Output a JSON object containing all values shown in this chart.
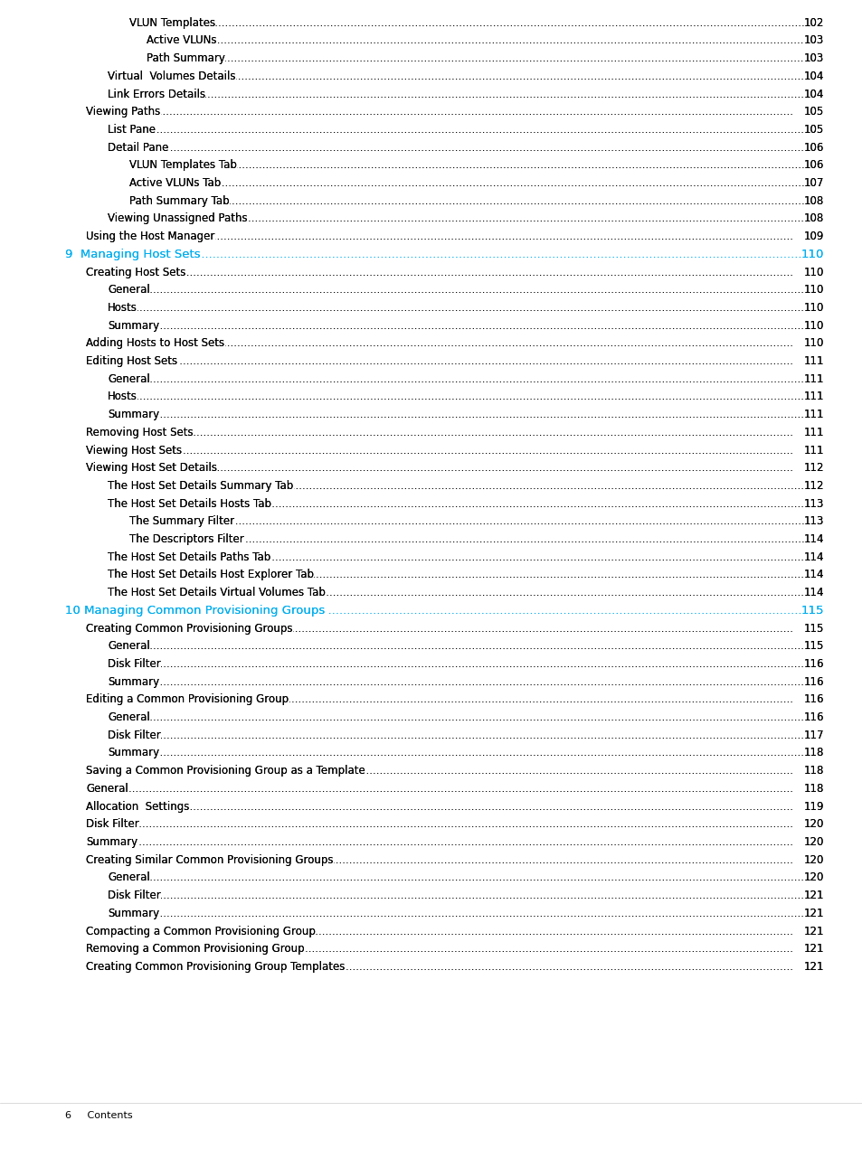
{
  "bg_color": "#ffffff",
  "text_color": "#000000",
  "cyan_color": "#00AEEF",
  "footer_text": "6     Contents",
  "entries": [
    {
      "indent": 3,
      "text": "VLUN Templates",
      "page": "102",
      "cyan": false
    },
    {
      "indent": 4,
      "text": "Active VLUNs",
      "page": "103",
      "cyan": false
    },
    {
      "indent": 4,
      "text": "Path Summary",
      "page": "103",
      "cyan": false
    },
    {
      "indent": 2,
      "text": "Virtual  Volumes Details",
      "page": "104",
      "cyan": false
    },
    {
      "indent": 2,
      "text": "Link Errors Details",
      "page": "104",
      "cyan": false
    },
    {
      "indent": 1,
      "text": "Viewing Paths",
      "page": "105",
      "cyan": false
    },
    {
      "indent": 2,
      "text": "List Pane",
      "page": "105",
      "cyan": false
    },
    {
      "indent": 2,
      "text": "Detail Pane",
      "page": "106",
      "cyan": false
    },
    {
      "indent": 3,
      "text": "VLUN Templates Tab",
      "page": "106",
      "cyan": false
    },
    {
      "indent": 3,
      "text": "Active VLUNs Tab",
      "page": "107",
      "cyan": false
    },
    {
      "indent": 3,
      "text": "Path Summary Tab",
      "page": "108",
      "cyan": false
    },
    {
      "indent": 2,
      "text": "Viewing Unassigned Paths",
      "page": "108",
      "cyan": false
    },
    {
      "indent": 1,
      "text": "Using the Host Manager",
      "page": "109",
      "cyan": false
    },
    {
      "indent": 0,
      "text": "9  Managing Host Sets",
      "page": "110",
      "cyan": true
    },
    {
      "indent": 1,
      "text": "Creating Host Sets",
      "page": "110",
      "cyan": false
    },
    {
      "indent": 2,
      "text": "General",
      "page": "110",
      "cyan": false
    },
    {
      "indent": 2,
      "text": "Hosts",
      "page": "110",
      "cyan": false
    },
    {
      "indent": 2,
      "text": "Summary",
      "page": "110",
      "cyan": false
    },
    {
      "indent": 1,
      "text": "Adding Hosts to Host Sets",
      "page": "110",
      "cyan": false
    },
    {
      "indent": 1,
      "text": "Editing Host Sets",
      "page": "111",
      "cyan": false
    },
    {
      "indent": 2,
      "text": "General",
      "page": "111",
      "cyan": false
    },
    {
      "indent": 2,
      "text": "Hosts",
      "page": "111",
      "cyan": false
    },
    {
      "indent": 2,
      "text": "Summary",
      "page": "111",
      "cyan": false
    },
    {
      "indent": 1,
      "text": "Removing Host Sets",
      "page": "111",
      "cyan": false
    },
    {
      "indent": 1,
      "text": "Viewing Host Sets",
      "page": "111",
      "cyan": false
    },
    {
      "indent": 1,
      "text": "Viewing Host Set Details",
      "page": "112",
      "cyan": false
    },
    {
      "indent": 2,
      "text": "The Host Set Details Summary Tab",
      "page": "112",
      "cyan": false
    },
    {
      "indent": 2,
      "text": "The Host Set Details Hosts Tab",
      "page": "113",
      "cyan": false
    },
    {
      "indent": 3,
      "text": "The Summary Filter",
      "page": "113",
      "cyan": false
    },
    {
      "indent": 3,
      "text": "The Descriptors Filter",
      "page": "114",
      "cyan": false
    },
    {
      "indent": 2,
      "text": "The Host Set Details Paths Tab",
      "page": "114",
      "cyan": false
    },
    {
      "indent": 2,
      "text": "The Host Set Details Host Explorer Tab",
      "page": "114",
      "cyan": false
    },
    {
      "indent": 2,
      "text": "The Host Set Details Virtual Volumes Tab",
      "page": "114",
      "cyan": false
    },
    {
      "indent": 0,
      "text": "10 Managing Common Provisioning Groups ",
      "page": "115",
      "cyan": true
    },
    {
      "indent": 1,
      "text": "Creating Common Provisioning Groups",
      "page": "115",
      "cyan": false
    },
    {
      "indent": 2,
      "text": "General",
      "page": "115",
      "cyan": false
    },
    {
      "indent": 2,
      "text": "Disk Filter",
      "page": "116",
      "cyan": false
    },
    {
      "indent": 2,
      "text": "Summary",
      "page": "116",
      "cyan": false
    },
    {
      "indent": 1,
      "text": "Editing a Common Provisioning Group",
      "page": "116",
      "cyan": false
    },
    {
      "indent": 2,
      "text": "General",
      "page": "116",
      "cyan": false
    },
    {
      "indent": 2,
      "text": "Disk Filter",
      "page": "117",
      "cyan": false
    },
    {
      "indent": 2,
      "text": "Summary",
      "page": "118",
      "cyan": false
    },
    {
      "indent": 1,
      "text": "Saving a Common Provisioning Group as a Template",
      "page": "118",
      "cyan": false
    },
    {
      "indent": 1,
      "text": "General",
      "page": "118",
      "cyan": false
    },
    {
      "indent": 1,
      "text": "Allocation  Settings",
      "page": "119",
      "cyan": false
    },
    {
      "indent": 1,
      "text": "Disk Filter",
      "page": "120",
      "cyan": false
    },
    {
      "indent": 1,
      "text": "Summary",
      "page": "120",
      "cyan": false
    },
    {
      "indent": 1,
      "text": "Creating Similar Common Provisioning Groups",
      "page": "120",
      "cyan": false
    },
    {
      "indent": 2,
      "text": "General",
      "page": "120",
      "cyan": false
    },
    {
      "indent": 2,
      "text": "Disk Filter",
      "page": "121",
      "cyan": false
    },
    {
      "indent": 2,
      "text": "Summary",
      "page": "121",
      "cyan": false
    },
    {
      "indent": 1,
      "text": "Compacting a Common Provisioning Group",
      "page": "121",
      "cyan": false
    },
    {
      "indent": 1,
      "text": "Removing a Common Provisioning Group",
      "page": "121",
      "cyan": false
    },
    {
      "indent": 1,
      "text": "Creating Common Provisioning Group Templates",
      "page": "121",
      "cyan": false
    }
  ]
}
